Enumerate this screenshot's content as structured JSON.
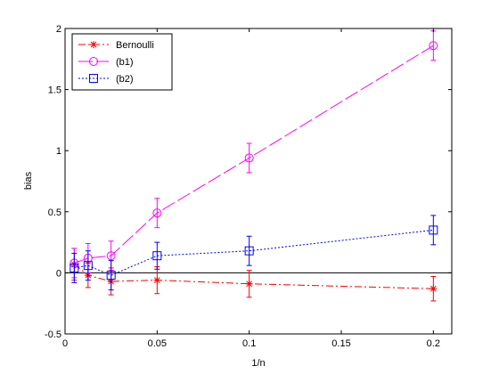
{
  "chart_data": {
    "type": "line",
    "xlabel": "1/n",
    "ylabel": "bias",
    "xlim": [
      0,
      0.21
    ],
    "ylim": [
      -0.5,
      2
    ],
    "x_ticks": [
      0,
      0.05,
      0.1,
      0.15,
      0.2
    ],
    "x_tick_labels": [
      "0",
      "0.05",
      "0.1",
      "0.15",
      "0.2"
    ],
    "y_ticks": [
      -0.5,
      0,
      0.5,
      1,
      1.5,
      2
    ],
    "y_tick_labels": [
      "-0.5",
      "0",
      "0.5",
      "1",
      "1.5",
      "2"
    ],
    "grid": false,
    "zero_line": true,
    "legend_position": "top-left",
    "x": [
      0.005,
      0.0125,
      0.025,
      0.05,
      0.1,
      0.2
    ],
    "series": [
      {
        "name": "Bernoulli",
        "color": "#ff0000",
        "line_style": "dash-dot",
        "marker": "star",
        "values": [
          0.07,
          -0.02,
          -0.07,
          -0.06,
          -0.09,
          -0.13
        ],
        "errors": [
          0.13,
          0.1,
          0.11,
          0.11,
          0.11,
          0.1
        ]
      },
      {
        "name": "(b1)",
        "color": "#ff00ff",
        "line_style": "long-dash",
        "marker": "circle",
        "values": [
          0.08,
          0.12,
          0.14,
          0.49,
          0.94,
          1.86
        ],
        "errors": [
          0.12,
          0.12,
          0.12,
          0.12,
          0.12,
          0.12
        ]
      },
      {
        "name": "(b2)",
        "color": "#0000ff",
        "line_style": "dotted",
        "marker": "square",
        "values": [
          0.04,
          0.06,
          -0.02,
          0.14,
          0.18,
          0.35
        ],
        "errors": [
          0.12,
          0.12,
          0.12,
          0.11,
          0.12,
          0.12
        ]
      }
    ]
  }
}
